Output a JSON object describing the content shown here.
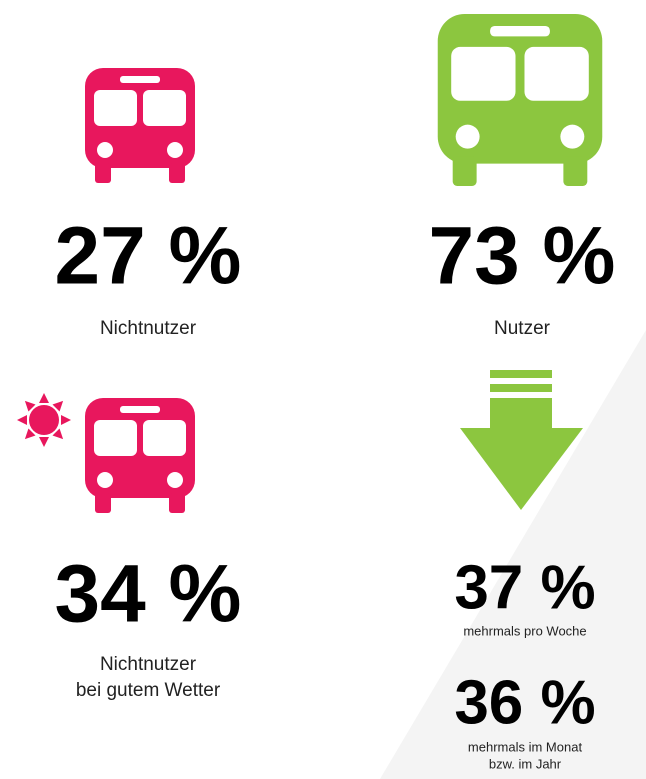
{
  "stats": [
    {
      "value": "27 %",
      "caption": [
        "Nichtnutzer"
      ]
    },
    {
      "value": "73 %",
      "caption": [
        "Nutzer"
      ]
    },
    {
      "value": "34 %",
      "caption": [
        "Nichtnutzer",
        "bei gutem Wetter"
      ]
    },
    {
      "value": "37 %",
      "caption": [
        "mehrmals pro Woche"
      ]
    },
    {
      "value": "36 %",
      "caption": [
        "mehrmals im Monat",
        "bzw. im Jahr"
      ]
    }
  ]
}
